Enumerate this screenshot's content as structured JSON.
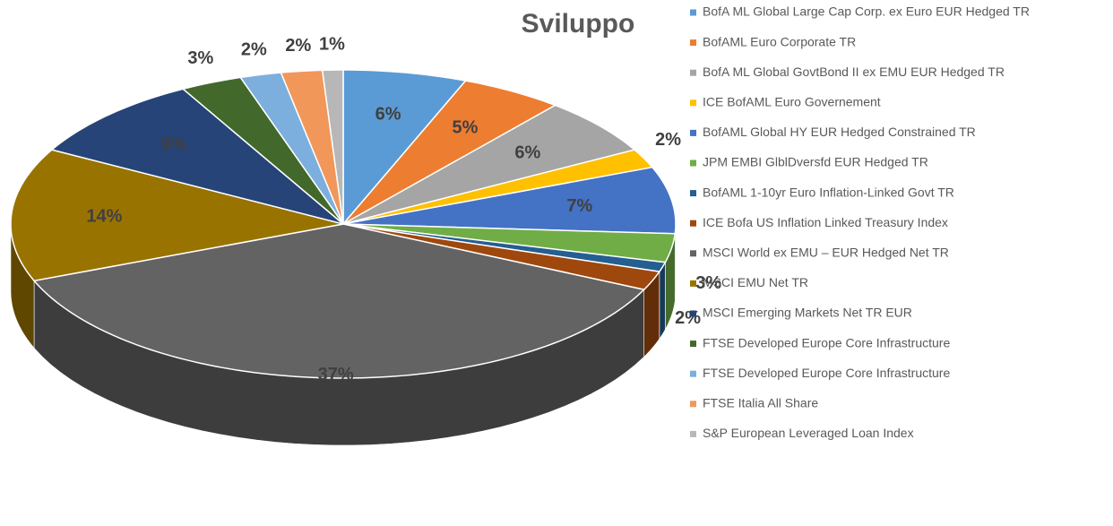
{
  "chart_data": {
    "type": "pie",
    "title": "Sviluppo",
    "categories": [
      "BofA ML Global Large Cap Corp. ex Euro EUR Hedged TR",
      "BofAML Euro Corporate TR",
      "BofA ML Global GovtBond II ex EMU EUR Hedged TR",
      "ICE BofAML Euro Governement",
      "BofAML Global HY EUR Hedged Constrained TR",
      "JPM EMBI GlblDversfd EUR Hedged TR",
      "BofAML 1-10yr Euro Inflation-Linked Govt TR",
      "ICE Bofa US Inflation Linked Treasury Index",
      "MSCI World ex EMU – EUR Hedged Net TR",
      "MSCI EMU Net TR",
      "MSCI Emerging Markets Net TR EUR",
      "FTSE Developed Europe Core Infrastructure",
      "FTSE Developed Europe Core Infrastructure",
      "FTSE Italia All Share",
      "S&P European Leveraged Loan Index"
    ],
    "values": [
      6,
      5,
      6,
      2,
      7,
      3,
      1,
      2,
      37,
      14,
      9,
      3,
      2,
      2,
      1
    ],
    "value_labels": [
      "6%",
      "5%",
      "6%",
      "2%",
      "7%",
      "3%",
      null,
      "2%",
      "37%",
      "14%",
      "9%",
      "3%",
      "2%",
      "2%",
      "1%"
    ],
    "colors": [
      "#5b9bd5",
      "#ed7d31",
      "#a5a5a5",
      "#ffc000",
      "#4472c4",
      "#70ad47",
      "#255e91",
      "#9e480e",
      "#636363",
      "#997300",
      "#264478",
      "#43682b",
      "#7cafdd",
      "#f1975a",
      "#b7b7b7"
    ]
  }
}
